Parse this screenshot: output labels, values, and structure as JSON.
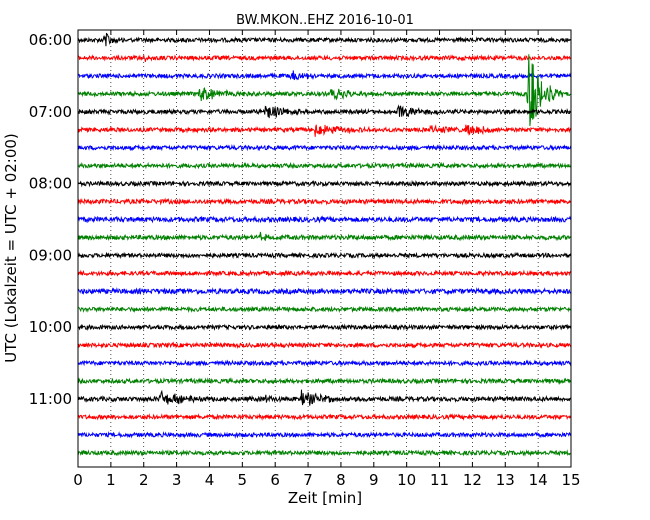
{
  "chart_data": {
    "type": "line",
    "title": "BW.MKON..EHZ 2016-10-01",
    "xlabel": "Zeit  [min]",
    "ylabel": "UTC (Lokalzeit = UTC + 02:00)",
    "xlim": [
      0,
      15
    ],
    "x_ticks": [
      0,
      1,
      2,
      3,
      4,
      5,
      6,
      7,
      8,
      9,
      10,
      11,
      12,
      13,
      14,
      15
    ],
    "x_tick_labels": [
      "0",
      "1",
      "2",
      "3",
      "4",
      "5",
      "6",
      "7",
      "8",
      "9",
      "10",
      "11",
      "12",
      "13",
      "14",
      "15"
    ],
    "grid": "vertical dotted",
    "colors": [
      "#000000",
      "#ff0000",
      "#0000ff",
      "#008000"
    ],
    "y_tick_labels": [
      {
        "label": "06:00",
        "trace_index": 0
      },
      {
        "label": "07:00",
        "trace_index": 4
      },
      {
        "label": "08:00",
        "trace_index": 8
      },
      {
        "label": "09:00",
        "trace_index": 12
      },
      {
        "label": "10:00",
        "trace_index": 16
      },
      {
        "label": "11:00",
        "trace_index": 20
      }
    ],
    "traces": [
      {
        "start": "06:00",
        "color": "#000000",
        "noise": 2.0,
        "events": [
          {
            "t": 0.8,
            "amp": 9,
            "dur": 0.25
          }
        ]
      },
      {
        "start": "06:15",
        "color": "#ff0000",
        "noise": 2.0,
        "events": [
          {
            "t": 2.0,
            "amp": 3,
            "dur": 0.2
          }
        ]
      },
      {
        "start": "06:30",
        "color": "#0000ff",
        "noise": 2.0,
        "events": [
          {
            "t": 6.5,
            "amp": 5,
            "dur": 0.4
          }
        ]
      },
      {
        "start": "06:45",
        "color": "#008000",
        "noise": 2.0,
        "events": [
          {
            "t": 3.7,
            "amp": 8,
            "dur": 0.6
          },
          {
            "t": 7.7,
            "amp": 6,
            "dur": 0.6
          },
          {
            "t": 13.7,
            "amp": 45,
            "dur": 0.35
          }
        ]
      },
      {
        "start": "07:00",
        "color": "#000000",
        "noise": 2.0,
        "events": [
          {
            "t": 5.7,
            "amp": 9,
            "dur": 0.5
          },
          {
            "t": 9.7,
            "amp": 7,
            "dur": 0.6
          }
        ]
      },
      {
        "start": "07:15",
        "color": "#ff0000",
        "noise": 2.0,
        "events": [
          {
            "t": 7.2,
            "amp": 7,
            "dur": 0.6
          },
          {
            "t": 10.7,
            "amp": 4,
            "dur": 0.5
          },
          {
            "t": 11.8,
            "amp": 7,
            "dur": 0.5
          }
        ]
      },
      {
        "start": "07:30",
        "color": "#0000ff",
        "noise": 2.0,
        "events": []
      },
      {
        "start": "07:45",
        "color": "#008000",
        "noise": 2.0,
        "events": []
      },
      {
        "start": "08:00",
        "color": "#000000",
        "noise": 2.0,
        "events": []
      },
      {
        "start": "08:15",
        "color": "#ff0000",
        "noise": 2.2,
        "events": []
      },
      {
        "start": "08:30",
        "color": "#0000ff",
        "noise": 2.4,
        "events": []
      },
      {
        "start": "08:45",
        "color": "#008000",
        "noise": 2.2,
        "events": [
          {
            "t": 5.5,
            "amp": 5,
            "dur": 0.2
          }
        ]
      },
      {
        "start": "09:00",
        "color": "#000000",
        "noise": 2.0,
        "events": []
      },
      {
        "start": "09:15",
        "color": "#ff0000",
        "noise": 2.0,
        "events": []
      },
      {
        "start": "09:30",
        "color": "#0000ff",
        "noise": 2.4,
        "events": []
      },
      {
        "start": "09:45",
        "color": "#008000",
        "noise": 2.0,
        "events": []
      },
      {
        "start": "10:00",
        "color": "#000000",
        "noise": 2.0,
        "events": []
      },
      {
        "start": "10:15",
        "color": "#ff0000",
        "noise": 2.0,
        "events": []
      },
      {
        "start": "10:30",
        "color": "#0000ff",
        "noise": 2.0,
        "events": []
      },
      {
        "start": "10:45",
        "color": "#008000",
        "noise": 2.0,
        "events": []
      },
      {
        "start": "11:00",
        "color": "#000000",
        "noise": 2.2,
        "events": [
          {
            "t": 2.5,
            "amp": 8,
            "dur": 0.6
          },
          {
            "t": 5.7,
            "amp": 4,
            "dur": 0.3
          },
          {
            "t": 6.8,
            "amp": 8,
            "dur": 0.6
          }
        ]
      },
      {
        "start": "11:15",
        "color": "#ff0000",
        "noise": 2.0,
        "events": []
      },
      {
        "start": "11:30",
        "color": "#0000ff",
        "noise": 2.0,
        "events": []
      },
      {
        "start": "11:45",
        "color": "#008000",
        "noise": 2.0,
        "events": []
      }
    ]
  }
}
